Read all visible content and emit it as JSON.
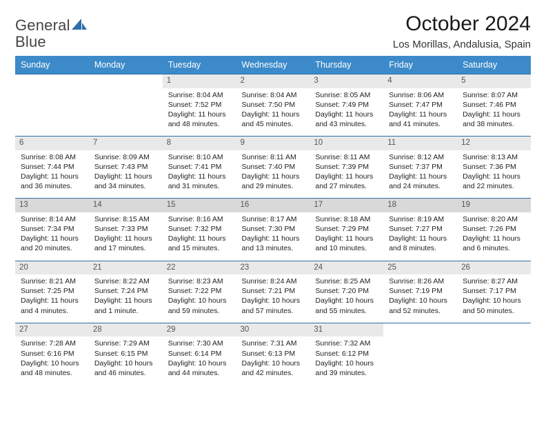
{
  "logo": {
    "text_a": "General",
    "text_b": "Blue"
  },
  "title": "October 2024",
  "subtitle": "Los Morillas, Andalusia, Spain",
  "daysOfWeek": [
    "Sunday",
    "Monday",
    "Tuesday",
    "Wednesday",
    "Thursday",
    "Friday",
    "Saturday"
  ],
  "colors": {
    "header_bg": "#3c8ac9",
    "header_text": "#ffffff",
    "row_border": "#2f6fa8",
    "daynum_bg": "#e9e9e9",
    "daynum_bg_alt": "#d9d9d9",
    "text": "#222222",
    "background": "#ffffff",
    "logo_gray": "#444444",
    "logo_blue": "#2f6fa8"
  },
  "typography": {
    "title_fontsize": 30,
    "subtitle_fontsize": 15,
    "dow_fontsize": 12.5,
    "daynum_fontsize": 11.5,
    "cell_fontsize": 10.5,
    "logo_fontsize": 22
  },
  "weeks": [
    [
      {
        "n": "",
        "sr": "",
        "ss": "",
        "dl": ""
      },
      {
        "n": "",
        "sr": "",
        "ss": "",
        "dl": ""
      },
      {
        "n": "1",
        "sr": "Sunrise: 8:04 AM",
        "ss": "Sunset: 7:52 PM",
        "dl": "Daylight: 11 hours and 48 minutes."
      },
      {
        "n": "2",
        "sr": "Sunrise: 8:04 AM",
        "ss": "Sunset: 7:50 PM",
        "dl": "Daylight: 11 hours and 45 minutes."
      },
      {
        "n": "3",
        "sr": "Sunrise: 8:05 AM",
        "ss": "Sunset: 7:49 PM",
        "dl": "Daylight: 11 hours and 43 minutes."
      },
      {
        "n": "4",
        "sr": "Sunrise: 8:06 AM",
        "ss": "Sunset: 7:47 PM",
        "dl": "Daylight: 11 hours and 41 minutes."
      },
      {
        "n": "5",
        "sr": "Sunrise: 8:07 AM",
        "ss": "Sunset: 7:46 PM",
        "dl": "Daylight: 11 hours and 38 minutes."
      }
    ],
    [
      {
        "n": "6",
        "sr": "Sunrise: 8:08 AM",
        "ss": "Sunset: 7:44 PM",
        "dl": "Daylight: 11 hours and 36 minutes."
      },
      {
        "n": "7",
        "sr": "Sunrise: 8:09 AM",
        "ss": "Sunset: 7:43 PM",
        "dl": "Daylight: 11 hours and 34 minutes."
      },
      {
        "n": "8",
        "sr": "Sunrise: 8:10 AM",
        "ss": "Sunset: 7:41 PM",
        "dl": "Daylight: 11 hours and 31 minutes."
      },
      {
        "n": "9",
        "sr": "Sunrise: 8:11 AM",
        "ss": "Sunset: 7:40 PM",
        "dl": "Daylight: 11 hours and 29 minutes."
      },
      {
        "n": "10",
        "sr": "Sunrise: 8:11 AM",
        "ss": "Sunset: 7:39 PM",
        "dl": "Daylight: 11 hours and 27 minutes."
      },
      {
        "n": "11",
        "sr": "Sunrise: 8:12 AM",
        "ss": "Sunset: 7:37 PM",
        "dl": "Daylight: 11 hours and 24 minutes."
      },
      {
        "n": "12",
        "sr": "Sunrise: 8:13 AM",
        "ss": "Sunset: 7:36 PM",
        "dl": "Daylight: 11 hours and 22 minutes."
      }
    ],
    [
      {
        "n": "13",
        "sr": "Sunrise: 8:14 AM",
        "ss": "Sunset: 7:34 PM",
        "dl": "Daylight: 11 hours and 20 minutes."
      },
      {
        "n": "14",
        "sr": "Sunrise: 8:15 AM",
        "ss": "Sunset: 7:33 PM",
        "dl": "Daylight: 11 hours and 17 minutes."
      },
      {
        "n": "15",
        "sr": "Sunrise: 8:16 AM",
        "ss": "Sunset: 7:32 PM",
        "dl": "Daylight: 11 hours and 15 minutes."
      },
      {
        "n": "16",
        "sr": "Sunrise: 8:17 AM",
        "ss": "Sunset: 7:30 PM",
        "dl": "Daylight: 11 hours and 13 minutes."
      },
      {
        "n": "17",
        "sr": "Sunrise: 8:18 AM",
        "ss": "Sunset: 7:29 PM",
        "dl": "Daylight: 11 hours and 10 minutes."
      },
      {
        "n": "18",
        "sr": "Sunrise: 8:19 AM",
        "ss": "Sunset: 7:27 PM",
        "dl": "Daylight: 11 hours and 8 minutes."
      },
      {
        "n": "19",
        "sr": "Sunrise: 8:20 AM",
        "ss": "Sunset: 7:26 PM",
        "dl": "Daylight: 11 hours and 6 minutes."
      }
    ],
    [
      {
        "n": "20",
        "sr": "Sunrise: 8:21 AM",
        "ss": "Sunset: 7:25 PM",
        "dl": "Daylight: 11 hours and 4 minutes."
      },
      {
        "n": "21",
        "sr": "Sunrise: 8:22 AM",
        "ss": "Sunset: 7:24 PM",
        "dl": "Daylight: 11 hours and 1 minute."
      },
      {
        "n": "22",
        "sr": "Sunrise: 8:23 AM",
        "ss": "Sunset: 7:22 PM",
        "dl": "Daylight: 10 hours and 59 minutes."
      },
      {
        "n": "23",
        "sr": "Sunrise: 8:24 AM",
        "ss": "Sunset: 7:21 PM",
        "dl": "Daylight: 10 hours and 57 minutes."
      },
      {
        "n": "24",
        "sr": "Sunrise: 8:25 AM",
        "ss": "Sunset: 7:20 PM",
        "dl": "Daylight: 10 hours and 55 minutes."
      },
      {
        "n": "25",
        "sr": "Sunrise: 8:26 AM",
        "ss": "Sunset: 7:19 PM",
        "dl": "Daylight: 10 hours and 52 minutes."
      },
      {
        "n": "26",
        "sr": "Sunrise: 8:27 AM",
        "ss": "Sunset: 7:17 PM",
        "dl": "Daylight: 10 hours and 50 minutes."
      }
    ],
    [
      {
        "n": "27",
        "sr": "Sunrise: 7:28 AM",
        "ss": "Sunset: 6:16 PM",
        "dl": "Daylight: 10 hours and 48 minutes."
      },
      {
        "n": "28",
        "sr": "Sunrise: 7:29 AM",
        "ss": "Sunset: 6:15 PM",
        "dl": "Daylight: 10 hours and 46 minutes."
      },
      {
        "n": "29",
        "sr": "Sunrise: 7:30 AM",
        "ss": "Sunset: 6:14 PM",
        "dl": "Daylight: 10 hours and 44 minutes."
      },
      {
        "n": "30",
        "sr": "Sunrise: 7:31 AM",
        "ss": "Sunset: 6:13 PM",
        "dl": "Daylight: 10 hours and 42 minutes."
      },
      {
        "n": "31",
        "sr": "Sunrise: 7:32 AM",
        "ss": "Sunset: 6:12 PM",
        "dl": "Daylight: 10 hours and 39 minutes."
      },
      {
        "n": "",
        "sr": "",
        "ss": "",
        "dl": ""
      },
      {
        "n": "",
        "sr": "",
        "ss": "",
        "dl": ""
      }
    ]
  ]
}
